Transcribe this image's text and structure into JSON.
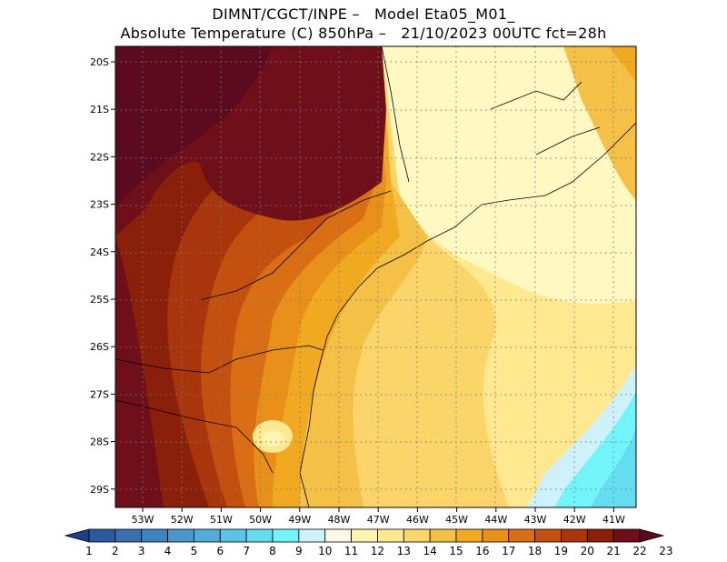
{
  "title_line1": "DIMNT/CGCT/INPE –   Model Eta05_M01_",
  "title_line2": "Absolute Temperature (C) 850hPa –   21/10/2023 00UTC fct=28h",
  "map": {
    "lon_range": [
      -53.7,
      -40.6
    ],
    "lat_range": [
      -29.4,
      -19.9
    ],
    "lat_labels": [
      "20S",
      "21S",
      "22S",
      "23S",
      "24S",
      "25S",
      "26S",
      "27S",
      "28S",
      "29S"
    ],
    "lon_labels": [
      "53W",
      "52W",
      "51W",
      "50W",
      "49W",
      "48W",
      "47W",
      "46W",
      "45W",
      "44W",
      "43W",
      "42W",
      "41W"
    ]
  },
  "colorbar": {
    "labels": [
      "1",
      "2",
      "3",
      "4",
      "5",
      "6",
      "7",
      "8",
      "9",
      "10",
      "11",
      "12",
      "13",
      "14",
      "15",
      "16",
      "17",
      "18",
      "19",
      "20",
      "21",
      "22",
      "23"
    ],
    "colors": [
      "#1f3d8f",
      "#2b5aa0",
      "#3a6fb0",
      "#3f82c0",
      "#4a97cc",
      "#55abd8",
      "#5cc3e6",
      "#66dcf0",
      "#72f4fa",
      "#cdf2fb",
      "#fff8e6",
      "#fff4b0",
      "#ffe890",
      "#fbd56a",
      "#f5c046",
      "#f0a920",
      "#e8901a",
      "#da6e14",
      "#c4500f",
      "#a8350c",
      "#8a2009",
      "#6e0f1a",
      "#5c0a20"
    ]
  }
}
